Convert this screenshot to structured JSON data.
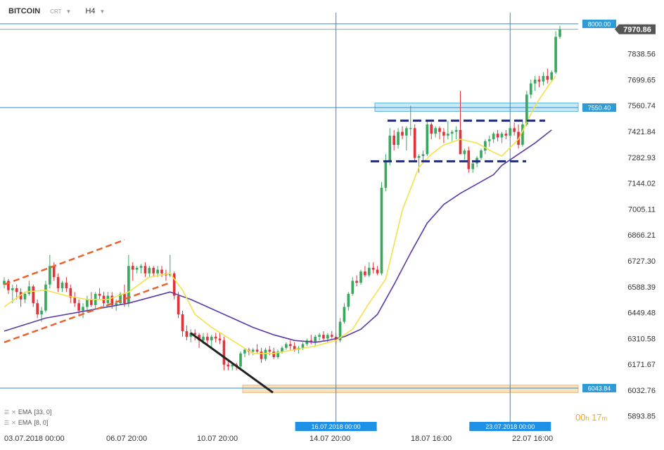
{
  "header": {
    "symbol": "BITCOIN",
    "chart_type": "CRT",
    "timeframe": "H4"
  },
  "indicators": [
    {
      "label": "EMA",
      "params": "[33, 0]",
      "color": "#5b3aa8"
    },
    {
      "label": "EMA",
      "params": "[8, 0]",
      "color": "#f4e14a"
    }
  ],
  "timer": {
    "hours": "00",
    "h": "h",
    "minutes": "17",
    "m": "m"
  },
  "colors": {
    "up": "#3aa85e",
    "down": "#e0343b",
    "line": "#2e8fc9",
    "ema_slow": "#5b3aa8",
    "ema_fast": "#f4e14a",
    "channel": "#e8642c",
    "trend": "#222222",
    "range": "#1e2a78",
    "zone_blue": "#a9d8f2",
    "zone_orange": "#f9d9b0",
    "axis_text": "#333333"
  },
  "chart_data": {
    "type": "candlestick",
    "title": "BITCOIN",
    "ylim": [
      5840,
      8060
    ],
    "y_ticks": [
      "7970.86",
      "7838.56",
      "7699.65",
      "7560.74",
      "7421.84",
      "7282.93",
      "7144.02",
      "7005.11",
      "6866.21",
      "6727.30",
      "6588.39",
      "6449.48",
      "6310.58",
      "6171.67",
      "6032.76",
      "5893.85"
    ],
    "x_ticks": [
      "03.07.2018 00:00",
      "06.07 20:00",
      "10.07 20:00",
      "14.07 20:00",
      "18.07 16:00",
      "22.07 16:00"
    ],
    "price_labels": [
      {
        "text": "8000.00",
        "value": 8000.0,
        "style": "line"
      },
      {
        "text": "7970.86",
        "value": 7970.86,
        "style": "current"
      },
      {
        "text": "7550.40",
        "value": 7550.4,
        "style": "line"
      },
      {
        "text": "6043.84",
        "value": 6043.84,
        "style": "line"
      }
    ],
    "vertical_markers": [
      {
        "label": "16.07.2018 00:00",
        "index": 80
      },
      {
        "label": "23.07.2018 00:00",
        "index": 122
      }
    ],
    "candles": [
      [
        6600,
        6640,
        6580,
        6620
      ],
      [
        6620,
        6630,
        6550,
        6570
      ],
      [
        6570,
        6600,
        6500,
        6580
      ],
      [
        6580,
        6600,
        6520,
        6560
      ],
      [
        6560,
        6580,
        6480,
        6520
      ],
      [
        6520,
        6560,
        6500,
        6550
      ],
      [
        6550,
        6620,
        6540,
        6590
      ],
      [
        6590,
        6600,
        6480,
        6500
      ],
      [
        6500,
        6520,
        6420,
        6440
      ],
      [
        6440,
        6480,
        6400,
        6460
      ],
      [
        6460,
        6620,
        6450,
        6600
      ],
      [
        6600,
        6760,
        6580,
        6700
      ],
      [
        6700,
        6720,
        6620,
        6640
      ],
      [
        6640,
        6660,
        6560,
        6580
      ],
      [
        6580,
        6620,
        6560,
        6610
      ],
      [
        6610,
        6640,
        6560,
        6580
      ],
      [
        6580,
        6600,
        6500,
        6530
      ],
      [
        6530,
        6560,
        6480,
        6500
      ],
      [
        6500,
        6520,
        6440,
        6460
      ],
      [
        6460,
        6500,
        6420,
        6480
      ],
      [
        6480,
        6540,
        6450,
        6520
      ],
      [
        6520,
        6560,
        6480,
        6490
      ],
      [
        6490,
        6560,
        6470,
        6550
      ],
      [
        6550,
        6580,
        6520,
        6540
      ],
      [
        6540,
        6560,
        6480,
        6500
      ],
      [
        6500,
        6560,
        6480,
        6540
      ],
      [
        6540,
        6560,
        6470,
        6490
      ],
      [
        6490,
        6520,
        6460,
        6500
      ],
      [
        6500,
        6560,
        6490,
        6550
      ],
      [
        6550,
        6600,
        6480,
        6500
      ],
      [
        6500,
        6760,
        6480,
        6700
      ],
      [
        6700,
        6720,
        6620,
        6680
      ],
      [
        6680,
        6700,
        6660,
        6690
      ],
      [
        6690,
        6710,
        6660,
        6700
      ],
      [
        6700,
        6720,
        6640,
        6660
      ],
      [
        6660,
        6700,
        6640,
        6690
      ],
      [
        6690,
        6700,
        6640,
        6660
      ],
      [
        6660,
        6700,
        6640,
        6680
      ],
      [
        6680,
        6700,
        6640,
        6660
      ],
      [
        6660,
        6680,
        6620,
        6650
      ],
      [
        6650,
        6760,
        6640,
        6660
      ],
      [
        6660,
        6670,
        6520,
        6540
      ],
      [
        6540,
        6560,
        6420,
        6440
      ],
      [
        6440,
        6460,
        6320,
        6350
      ],
      [
        6350,
        6380,
        6300,
        6320
      ],
      [
        6320,
        6360,
        6290,
        6340
      ],
      [
        6340,
        6360,
        6300,
        6330
      ],
      [
        6330,
        6340,
        6260,
        6300
      ],
      [
        6300,
        6340,
        6280,
        6320
      ],
      [
        6320,
        6340,
        6280,
        6300
      ],
      [
        6300,
        6330,
        6260,
        6320
      ],
      [
        6320,
        6340,
        6290,
        6310
      ],
      [
        6310,
        6340,
        6280,
        6300
      ],
      [
        6300,
        6320,
        6140,
        6170
      ],
      [
        6170,
        6200,
        6140,
        6160
      ],
      [
        6160,
        6180,
        6140,
        6170
      ],
      [
        6170,
        6180,
        6140,
        6160
      ],
      [
        6160,
        6240,
        6150,
        6230
      ],
      [
        6230,
        6260,
        6210,
        6250
      ],
      [
        6250,
        6260,
        6220,
        6240
      ],
      [
        6240,
        6260,
        6220,
        6250
      ],
      [
        6250,
        6280,
        6230,
        6240
      ],
      [
        6240,
        6260,
        6180,
        6200
      ],
      [
        6200,
        6260,
        6190,
        6250
      ],
      [
        6250,
        6270,
        6220,
        6240
      ],
      [
        6240,
        6260,
        6200,
        6210
      ],
      [
        6210,
        6250,
        6200,
        6240
      ],
      [
        6240,
        6270,
        6230,
        6260
      ],
      [
        6260,
        6290,
        6250,
        6280
      ],
      [
        6280,
        6300,
        6250,
        6270
      ],
      [
        6270,
        6290,
        6240,
        6250
      ],
      [
        6250,
        6270,
        6230,
        6260
      ],
      [
        6260,
        6290,
        6250,
        6280
      ],
      [
        6280,
        6310,
        6270,
        6300
      ],
      [
        6300,
        6330,
        6280,
        6290
      ],
      [
        6290,
        6330,
        6270,
        6320
      ],
      [
        6320,
        6340,
        6300,
        6330
      ],
      [
        6330,
        6350,
        6300,
        6310
      ],
      [
        6310,
        6340,
        6290,
        6330
      ],
      [
        6330,
        6350,
        6310,
        6320
      ],
      [
        6320,
        6340,
        6280,
        6300
      ],
      [
        6300,
        6420,
        6290,
        6400
      ],
      [
        6400,
        6500,
        6390,
        6480
      ],
      [
        6480,
        6560,
        6460,
        6550
      ],
      [
        6550,
        6640,
        6540,
        6620
      ],
      [
        6620,
        6650,
        6590,
        6610
      ],
      [
        6610,
        6680,
        6600,
        6670
      ],
      [
        6670,
        6700,
        6640,
        6650
      ],
      [
        6650,
        6720,
        6640,
        6690
      ],
      [
        6690,
        6720,
        6660,
        6680
      ],
      [
        6680,
        6700,
        6650,
        6660
      ],
      [
        6660,
        7150,
        6650,
        7120
      ],
      [
        7120,
        7300,
        7100,
        7260
      ],
      [
        7260,
        7440,
        7240,
        7400
      ],
      [
        7400,
        7430,
        7320,
        7350
      ],
      [
        7350,
        7440,
        7330,
        7420
      ],
      [
        7420,
        7450,
        7380,
        7400
      ],
      [
        7400,
        7450,
        7320,
        7440
      ],
      [
        7440,
        7560,
        7400,
        7440
      ],
      [
        7440,
        7460,
        7260,
        7280
      ],
      [
        7280,
        7300,
        7200,
        7290
      ],
      [
        7290,
        7320,
        7260,
        7300
      ],
      [
        7300,
        7480,
        7290,
        7460
      ],
      [
        7460,
        7470,
        7380,
        7410
      ],
      [
        7410,
        7450,
        7390,
        7440
      ],
      [
        7440,
        7450,
        7380,
        7420
      ],
      [
        7420,
        7440,
        7360,
        7400
      ],
      [
        7400,
        7480,
        7380,
        7410
      ],
      [
        7410,
        7430,
        7370,
        7420
      ],
      [
        7420,
        7450,
        7380,
        7430
      ],
      [
        7430,
        7640,
        7300,
        7300
      ],
      [
        7300,
        7330,
        7270,
        7320
      ],
      [
        7320,
        7340,
        7200,
        7220
      ],
      [
        7220,
        7260,
        7200,
        7250
      ],
      [
        7250,
        7290,
        7230,
        7280
      ],
      [
        7280,
        7330,
        7270,
        7320
      ],
      [
        7320,
        7380,
        7300,
        7370
      ],
      [
        7370,
        7400,
        7340,
        7380
      ],
      [
        7380,
        7420,
        7360,
        7410
      ],
      [
        7410,
        7430,
        7370,
        7390
      ],
      [
        7390,
        7420,
        7360,
        7410
      ],
      [
        7410,
        7430,
        7380,
        7400
      ],
      [
        7400,
        7450,
        7390,
        7440
      ],
      [
        7440,
        7470,
        7400,
        7420
      ],
      [
        7420,
        7460,
        7330,
        7350
      ],
      [
        7350,
        7480,
        7340,
        7460
      ],
      [
        7460,
        7640,
        7450,
        7620
      ],
      [
        7620,
        7700,
        7600,
        7680
      ],
      [
        7680,
        7720,
        7640,
        7700
      ],
      [
        7700,
        7720,
        7660,
        7690
      ],
      [
        7690,
        7740,
        7670,
        7720
      ],
      [
        7720,
        7760,
        7680,
        7700
      ],
      [
        7700,
        7750,
        7690,
        7740
      ],
      [
        7740,
        7960,
        7730,
        7930
      ],
      [
        7930,
        7990,
        7920,
        7970
      ]
    ],
    "ema33": [
      [
        0,
        6350
      ],
      [
        10,
        6420
      ],
      [
        20,
        6460
      ],
      [
        30,
        6500
      ],
      [
        40,
        6560
      ],
      [
        45,
        6520
      ],
      [
        50,
        6470
      ],
      [
        55,
        6420
      ],
      [
        60,
        6370
      ],
      [
        65,
        6330
      ],
      [
        70,
        6300
      ],
      [
        75,
        6290
      ],
      [
        78,
        6300
      ],
      [
        82,
        6320
      ],
      [
        86,
        6360
      ],
      [
        90,
        6440
      ],
      [
        94,
        6600
      ],
      [
        98,
        6770
      ],
      [
        102,
        6930
      ],
      [
        106,
        7030
      ],
      [
        110,
        7090
      ],
      [
        114,
        7140
      ],
      [
        118,
        7190
      ],
      [
        120,
        7240
      ],
      [
        124,
        7300
      ],
      [
        128,
        7360
      ],
      [
        132,
        7430
      ]
    ],
    "ema8": [
      [
        0,
        6480
      ],
      [
        5,
        6560
      ],
      [
        10,
        6570
      ],
      [
        15,
        6540
      ],
      [
        20,
        6520
      ],
      [
        25,
        6520
      ],
      [
        30,
        6560
      ],
      [
        35,
        6640
      ],
      [
        40,
        6660
      ],
      [
        43,
        6570
      ],
      [
        46,
        6440
      ],
      [
        50,
        6370
      ],
      [
        55,
        6300
      ],
      [
        60,
        6230
      ],
      [
        65,
        6230
      ],
      [
        70,
        6250
      ],
      [
        75,
        6270
      ],
      [
        80,
        6300
      ],
      [
        84,
        6360
      ],
      [
        88,
        6500
      ],
      [
        92,
        6630
      ],
      [
        96,
        7000
      ],
      [
        100,
        7230
      ],
      [
        103,
        7300
      ],
      [
        106,
        7350
      ],
      [
        110,
        7380
      ],
      [
        114,
        7360
      ],
      [
        118,
        7310
      ],
      [
        120,
        7290
      ],
      [
        124,
        7380
      ],
      [
        128,
        7560
      ],
      [
        131,
        7660
      ],
      [
        133,
        7720
      ]
    ]
  }
}
